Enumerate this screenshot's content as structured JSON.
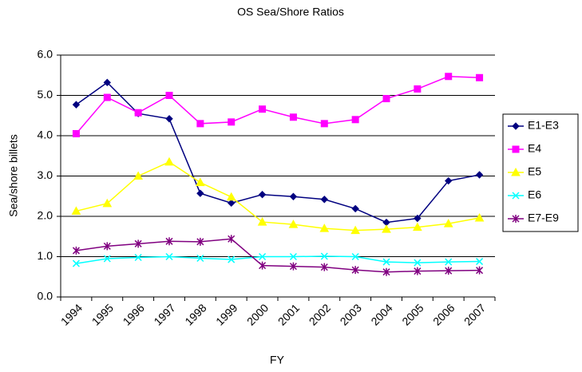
{
  "chart_data": {
    "type": "line",
    "title": "OS Sea/Shore Ratios",
    "x_label": "FY",
    "y_label": "Sea/shore billets",
    "categories": [
      "1994",
      "1995",
      "1996",
      "1997",
      "1998",
      "1999",
      "2000",
      "2001",
      "2002",
      "2003",
      "2004",
      "2005",
      "2006",
      "2007"
    ],
    "series": [
      {
        "name": "E1-E3",
        "color": "#000080",
        "marker": "diamond",
        "values": [
          4.77,
          5.32,
          4.55,
          4.42,
          2.57,
          2.33,
          2.54,
          2.49,
          2.42,
          2.19,
          1.85,
          1.95,
          2.88,
          3.03
        ]
      },
      {
        "name": "E4",
        "color": "#ff00ff",
        "marker": "square",
        "values": [
          4.05,
          4.95,
          4.57,
          5.0,
          4.3,
          4.34,
          4.66,
          4.46,
          4.3,
          4.4,
          4.92,
          5.16,
          5.47,
          5.44
        ]
      },
      {
        "name": "E5",
        "color": "#ffff00",
        "marker": "triangle",
        "values": [
          2.13,
          2.32,
          3.0,
          3.35,
          2.84,
          2.48,
          1.86,
          1.8,
          1.7,
          1.65,
          1.68,
          1.73,
          1.82,
          1.96
        ]
      },
      {
        "name": "E6",
        "color": "#00ffff",
        "marker": "x",
        "values": [
          0.83,
          0.95,
          0.98,
          1.0,
          0.96,
          0.93,
          1.0,
          1.0,
          1.01,
          1.0,
          0.87,
          0.85,
          0.87,
          0.88
        ]
      },
      {
        "name": "E7-E9",
        "color": "#800080",
        "marker": "star",
        "values": [
          1.15,
          1.26,
          1.32,
          1.38,
          1.37,
          1.44,
          0.78,
          0.76,
          0.74,
          0.67,
          0.62,
          0.64,
          0.65,
          0.66
        ]
      }
    ],
    "ylim": [
      0,
      6
    ],
    "yticks": [
      {
        "value": 0,
        "label": "0.0"
      },
      {
        "value": 1,
        "label": "1.0"
      },
      {
        "value": 2,
        "label": "2.0"
      },
      {
        "value": 3,
        "label": "3.0"
      },
      {
        "value": 4,
        "label": "4.0"
      },
      {
        "value": 5,
        "label": "5.0"
      },
      {
        "value": 6,
        "label": "6.0"
      }
    ],
    "grid": true,
    "legend": "right"
  }
}
